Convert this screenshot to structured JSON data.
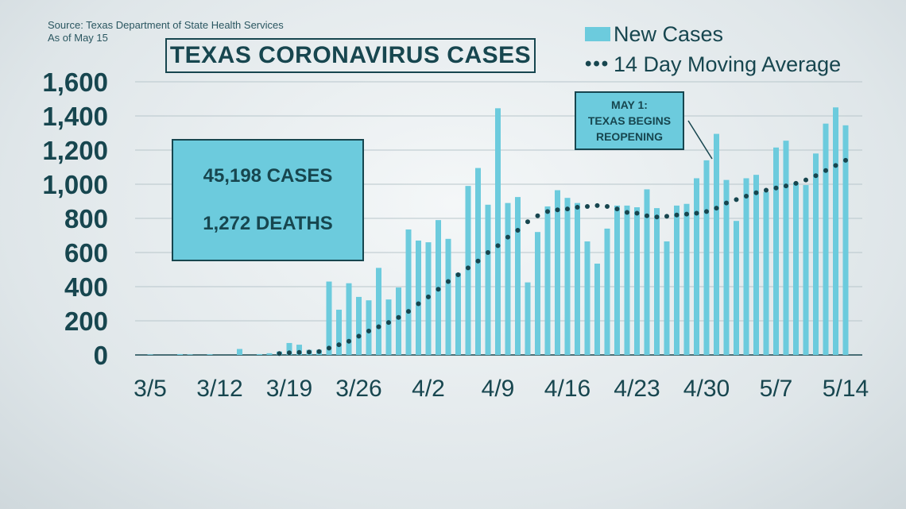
{
  "header": {
    "source": "Source: Texas Department of State Health Services",
    "as_of": "As of May 15",
    "title": "TEXAS CORONAVIRUS CASES"
  },
  "legend": {
    "bars_label": "New Cases",
    "line_label": "14 Day Moving Average"
  },
  "stats": {
    "cases": "45,198 CASES",
    "deaths": "1,272 DEATHS"
  },
  "annotation": {
    "line1": "MAY 1:",
    "line2": "TEXAS BEGINS",
    "line3": "REOPENING"
  },
  "colors": {
    "bar": "#6ccbdd",
    "line": "#17464f",
    "text": "#17464f",
    "grid": "#b8c6cb"
  },
  "chart_data": {
    "type": "bar",
    "title": "TEXAS CORONAVIRUS CASES",
    "ylim": [
      0,
      1600
    ],
    "yticks": [
      "0",
      "200",
      "400",
      "600",
      "800",
      "1,000",
      "1,200",
      "1,400",
      "1,600"
    ],
    "ytick_values": [
      0,
      200,
      400,
      600,
      800,
      1000,
      1200,
      1400,
      1600
    ],
    "xtick_labels": [
      "3/5",
      "3/12",
      "3/19",
      "3/26",
      "4/2",
      "4/9",
      "4/16",
      "4/23",
      "4/30",
      "5/7",
      "5/14"
    ],
    "xtick_indices": [
      0,
      7,
      14,
      21,
      28,
      35,
      42,
      49,
      56,
      63,
      70
    ],
    "grid": true,
    "legend_position": "top-right",
    "series": [
      {
        "name": "New Cases",
        "type": "bar",
        "values": [
          3,
          0,
          0,
          5,
          3,
          0,
          4,
          0,
          0,
          35,
          0,
          5,
          10,
          20,
          70,
          60,
          30,
          30,
          430,
          265,
          420,
          340,
          320,
          510,
          325,
          395,
          735,
          670,
          660,
          790,
          680,
          480,
          990,
          1095,
          880,
          1445,
          890,
          925,
          425,
          720,
          870,
          965,
          920,
          890,
          665,
          535,
          740,
          875,
          875,
          865,
          970,
          860,
          665,
          875,
          885,
          1035,
          1140,
          1295,
          1025,
          785,
          1035,
          1055,
          955,
          1215,
          1255,
          1010,
          995,
          1180,
          1355,
          1450,
          1345
        ]
      },
      {
        "name": "14 Day Moving Average",
        "type": "line",
        "start_index": 13,
        "values": [
          8,
          13,
          15,
          17,
          20,
          40,
          60,
          80,
          110,
          140,
          165,
          190,
          220,
          255,
          300,
          340,
          385,
          430,
          470,
          510,
          550,
          600,
          640,
          690,
          730,
          780,
          815,
          840,
          850,
          855,
          865,
          870,
          875,
          870,
          855,
          835,
          830,
          815,
          808,
          812,
          820,
          825,
          830,
          840,
          860,
          890,
          910,
          930,
          950,
          965,
          978,
          990,
          1005,
          1025,
          1050,
          1080,
          1110,
          1140
        ]
      }
    ]
  }
}
